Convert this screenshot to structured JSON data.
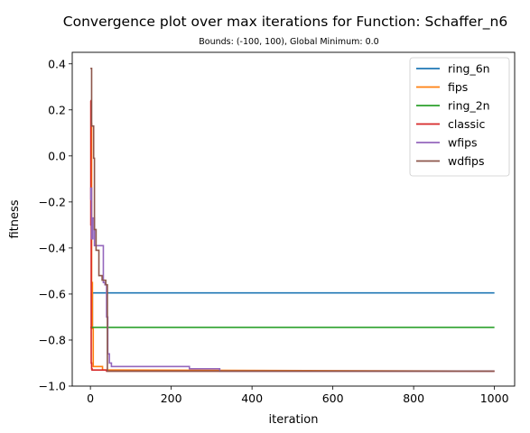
{
  "chart_data": {
    "type": "line",
    "title": "Convergence plot over max iterations for Function: Schaffer_n6",
    "subtitle": "Bounds: (-100, 100), Global Minimum: 0.0",
    "xlabel": "iteration",
    "ylabel": "fitness",
    "xlim": [
      -45,
      1050
    ],
    "ylim": [
      -1.0,
      0.45
    ],
    "xticks": [
      0,
      200,
      400,
      600,
      800,
      1000
    ],
    "yticks": [
      -1.0,
      -0.8,
      -0.6,
      -0.4,
      -0.2,
      0.0,
      0.2,
      0.4
    ],
    "xtick_labels": [
      "0",
      "200",
      "400",
      "600",
      "800",
      "1000"
    ],
    "ytick_labels": [
      "−1.0",
      "−0.8",
      "−0.6",
      "−0.4",
      "−0.2",
      "0.0",
      "0.2",
      "0.4"
    ],
    "legend_position": "top-right",
    "series": [
      {
        "name": "ring_6n",
        "color": "#1f77b4",
        "x": [
          0,
          5,
          5,
          1000
        ],
        "y": [
          -0.745,
          -0.745,
          -0.595,
          -0.595
        ]
      },
      {
        "name": "fips",
        "color": "#ff7f0e",
        "x": [
          0,
          2,
          2,
          3,
          3,
          5,
          5,
          7,
          7,
          30,
          30,
          1000
        ],
        "y": [
          -0.03,
          -0.03,
          0.14,
          0.14,
          -0.55,
          -0.55,
          -0.75,
          -0.75,
          -0.915,
          -0.915,
          -0.93,
          -0.935
        ]
      },
      {
        "name": "ring_2n",
        "color": "#2ca02c",
        "x": [
          0,
          1000
        ],
        "y": [
          -0.745,
          -0.745
        ]
      },
      {
        "name": "classic",
        "color": "#d62728",
        "x": [
          0,
          1,
          1,
          2,
          2,
          3,
          3,
          4,
          4,
          40,
          40,
          280,
          280,
          1000
        ],
        "y": [
          0.24,
          0.24,
          -0.3,
          -0.3,
          -0.9,
          -0.9,
          -0.925,
          -0.925,
          -0.93,
          -0.93,
          -0.935,
          -0.935,
          -0.935,
          -0.935
        ]
      },
      {
        "name": "wfips",
        "color": "#9467bd",
        "x": [
          0,
          1,
          1,
          3,
          3,
          6,
          6,
          10,
          10,
          15,
          15,
          32,
          32,
          36,
          36,
          40,
          40,
          43,
          43,
          47,
          47,
          52,
          52,
          245,
          245,
          320,
          320,
          1000
        ],
        "y": [
          -0.19,
          -0.19,
          -0.14,
          -0.14,
          -0.36,
          -0.36,
          -0.27,
          -0.27,
          -0.39,
          -0.39,
          -0.39,
          -0.39,
          -0.55,
          -0.55,
          -0.56,
          -0.56,
          -0.7,
          -0.7,
          -0.86,
          -0.86,
          -0.9,
          -0.9,
          -0.915,
          -0.915,
          -0.925,
          -0.925,
          -0.935,
          -0.935
        ]
      },
      {
        "name": "wdfips",
        "color": "#8c564b",
        "x": [
          0,
          3,
          3,
          8,
          8,
          10,
          10,
          14,
          14,
          21,
          21,
          29,
          29,
          38,
          38,
          42,
          42,
          1000
        ],
        "y": [
          0.38,
          0.38,
          0.13,
          0.13,
          -0.01,
          -0.01,
          -0.32,
          -0.32,
          -0.41,
          -0.41,
          -0.52,
          -0.52,
          -0.54,
          -0.54,
          -0.56,
          -0.56,
          -0.935,
          -0.935
        ]
      }
    ]
  }
}
